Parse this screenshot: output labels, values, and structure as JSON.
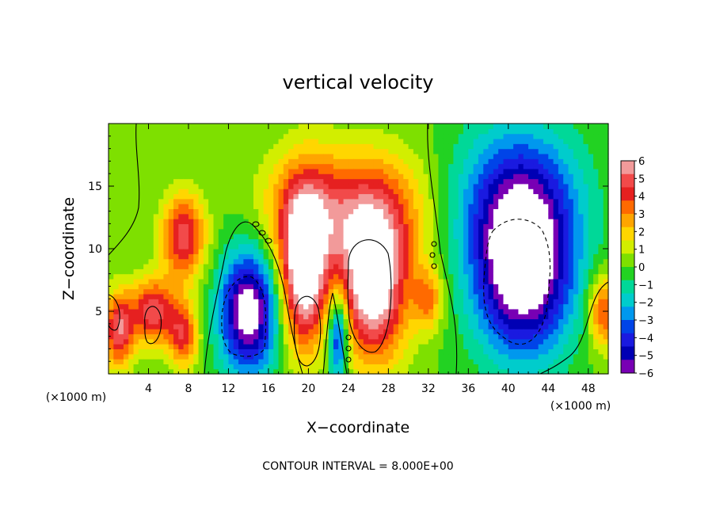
{
  "chart_data": {
    "type": "heatmap",
    "title": "vertical velocity",
    "xlabel": "X−coordinate",
    "ylabel": "Z−coordinate",
    "x_unit_left": "(×1000 m)",
    "x_unit_right": "(×1000 m)",
    "footer": "CONTOUR INTERVAL = 8.000E+00",
    "xlim": [
      0,
      50
    ],
    "ylim": [
      0,
      20
    ],
    "x_ticks": [
      4,
      8,
      12,
      16,
      20,
      24,
      28,
      32,
      36,
      40,
      44,
      48
    ],
    "x_tick_labels": [
      "4",
      "8",
      "12",
      "16",
      "20",
      "24",
      "28",
      "32",
      "36",
      "40",
      "44",
      "48"
    ],
    "y_ticks": [
      5,
      10,
      15
    ],
    "y_tick_labels": [
      "5",
      "10",
      "15"
    ],
    "colorbar": {
      "min": -6,
      "max": 6,
      "ticks": [
        6,
        5,
        4,
        3,
        2,
        1,
        0,
        -1,
        -2,
        -3,
        -4,
        -5,
        -6
      ],
      "tick_labels": [
        "6",
        "5",
        "4",
        "3",
        "2",
        "1",
        "0",
        "−1",
        "−2",
        "−3",
        "−4",
        "−5",
        "−6"
      ],
      "colors": [
        "#f29a9a",
        "#f24a4a",
        "#e62020",
        "#ff6a00",
        "#ffa500",
        "#ffd600",
        "#d2ee00",
        "#7ee000",
        "#22d222",
        "#00d898",
        "#00cccc",
        "#0098ee",
        "#0044e8",
        "#1a1ae0",
        "#0000b4",
        "#7800b4"
      ]
    },
    "cells": [
      {
        "x": 7.5,
        "z": 11,
        "rx": 2.2,
        "rz": 3.4,
        "w": 5
      },
      {
        "x": 4.5,
        "z": 5,
        "rx": 2.4,
        "rz": 2.6,
        "w": 5
      },
      {
        "x": 1,
        "z": 3.5,
        "rx": 1.5,
        "rz": 3,
        "w": 5
      },
      {
        "x": 7.5,
        "z": 3,
        "rx": 1.5,
        "rz": 2.5,
        "w": 4
      },
      {
        "x": 14,
        "z": 5,
        "rx": 2.8,
        "rz": 4.8,
        "w": -7
      },
      {
        "x": 19.5,
        "z": 8,
        "rx": 2.2,
        "rz": 6,
        "w": 7
      },
      {
        "x": 20.5,
        "z": 13,
        "rx": 5,
        "rz": 5,
        "w": 4
      },
      {
        "x": 23,
        "z": 3,
        "rx": 1,
        "rz": 3.5,
        "w": -5
      },
      {
        "x": 26.5,
        "z": 7,
        "rx": 3.4,
        "rz": 6,
        "w": 7
      },
      {
        "x": 27.5,
        "z": 13,
        "rx": 5,
        "rz": 5,
        "w": 3
      },
      {
        "x": 32,
        "z": 6,
        "rx": 1.5,
        "rz": 2.5,
        "w": 3
      },
      {
        "x": 41.5,
        "z": 8,
        "rx": 4.8,
        "rz": 6.5,
        "w": -7
      },
      {
        "x": 41,
        "z": 14,
        "rx": 6,
        "rz": 6,
        "w": -4
      },
      {
        "x": 49.5,
        "z": 5,
        "rx": 1.5,
        "rz": 3,
        "w": 4
      }
    ]
  }
}
